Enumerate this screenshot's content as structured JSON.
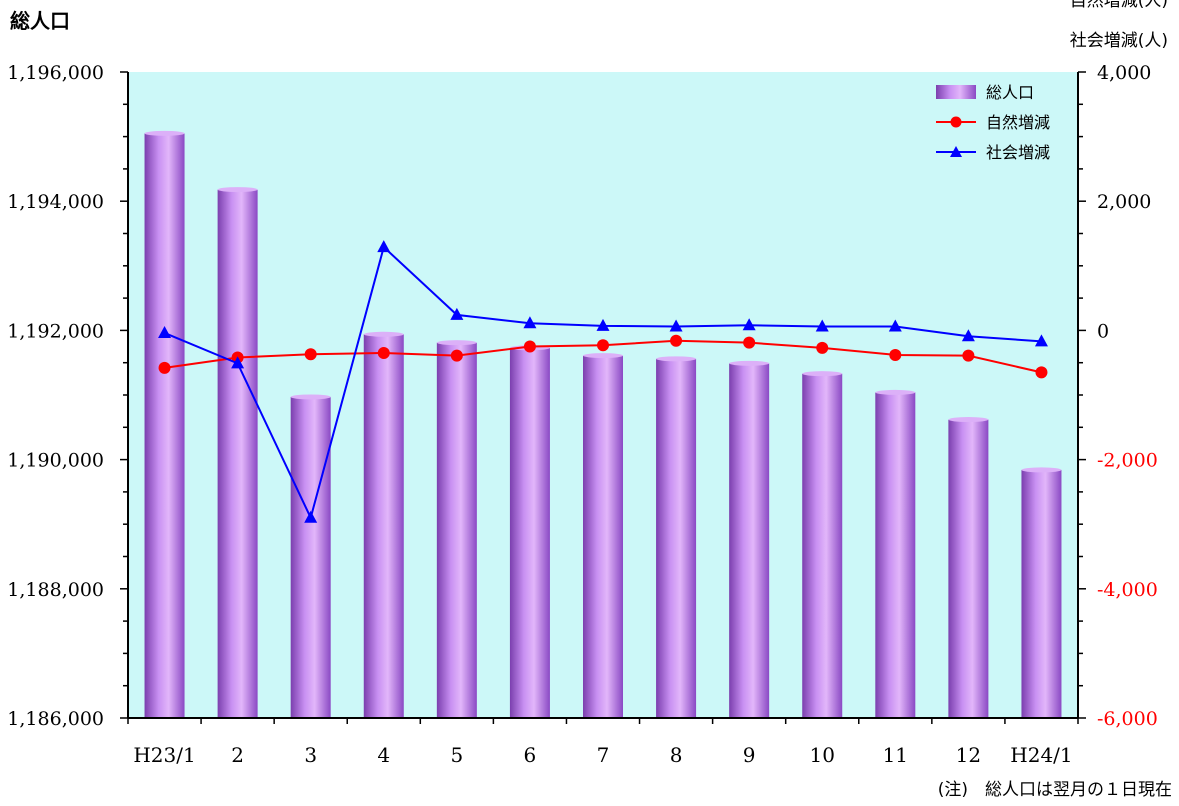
{
  "chart_data": {
    "type": "bar",
    "left_axis_label": "総人口",
    "right_axis_label_1": "自然増減(人)",
    "right_axis_label_2": "社会増減(人)",
    "note": "(注)　総人口は翌月の１日現在",
    "categories": [
      "H23/1",
      "2",
      "3",
      "4",
      "5",
      "6",
      "7",
      "8",
      "9",
      "10",
      "11",
      "12",
      "H24/1"
    ],
    "left_axis": {
      "ylim": [
        1186000,
        1196000
      ],
      "ticks": [
        "1,186,000",
        "1,188,000",
        "1,190,000",
        "1,192,000",
        "1,194,000",
        "1,196,000"
      ]
    },
    "right_axis": {
      "ylim": [
        -6000,
        4000
      ],
      "ticks": [
        "-6,000",
        "-4,000",
        "-2,000",
        "0",
        "2,000",
        "4,000"
      ]
    },
    "series": [
      {
        "name": "総人口",
        "type": "bar",
        "axis": "left",
        "values": [
          1195050,
          1194180,
          1190970,
          1191940,
          1191810,
          1191730,
          1191610,
          1191560,
          1191490,
          1191330,
          1191040,
          1190620,
          1189840
        ]
      },
      {
        "name": "自然増減",
        "type": "line",
        "axis": "right",
        "values": [
          -580,
          -420,
          -370,
          -350,
          -390,
          -250,
          -230,
          -160,
          -190,
          -270,
          -380,
          -390,
          -650
        ]
      },
      {
        "name": "社会増減",
        "type": "line",
        "axis": "right",
        "values": [
          -40,
          -510,
          -2900,
          1290,
          240,
          110,
          70,
          60,
          80,
          60,
          60,
          -90,
          -170
        ]
      }
    ],
    "legend_position": "top-right",
    "colors": {
      "plot_bg": "#ccf8f8",
      "bar": "#a45ede",
      "bar_light": "#e2b6fa",
      "natural": "#ff0000",
      "social": "#0000ff",
      "negative_tick": "#ff0000"
    }
  }
}
